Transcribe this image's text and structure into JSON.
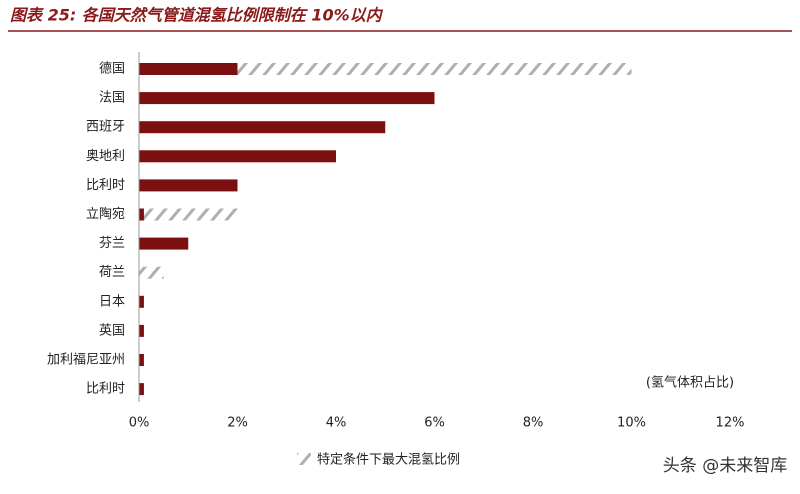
{
  "chart_data": {
    "type": "bar",
    "orientation": "horizontal",
    "title": "图表 25: 各国天然气管道混氢比例限制在 10%以内",
    "annotation": "(氢气体积占比)",
    "categories": [
      "德国",
      "法国",
      "西班牙",
      "奥地利",
      "比利时",
      "立陶宛",
      "芬兰",
      "荷兰",
      "日本",
      "英国",
      "加利福尼亚州",
      "比利时"
    ],
    "series": [
      {
        "color": "#7b1010",
        "pattern": "solid",
        "values": [
          2,
          6,
          5,
          4,
          2,
          0.1,
          1,
          0,
          0.1,
          0.1,
          0.1,
          0.1
        ]
      },
      {
        "name": "特定条件下最大混氢比例",
        "color": "#b0b0b0",
        "pattern": "hatch",
        "values": [
          10,
          null,
          null,
          null,
          null,
          2,
          null,
          0.5,
          null,
          null,
          null,
          null
        ]
      }
    ],
    "xlim": [
      0,
      12
    ],
    "xticks": [
      {
        "value": 0,
        "label": "0%"
      },
      {
        "value": 2,
        "label": "2%"
      },
      {
        "value": 4,
        "label": "4%"
      },
      {
        "value": 6,
        "label": "6%"
      },
      {
        "value": 8,
        "label": "8%"
      },
      {
        "value": 10,
        "label": "10%"
      },
      {
        "value": 12,
        "label": "12%"
      }
    ],
    "legend": "bottom"
  },
  "watermark": "头条 @未来智库"
}
